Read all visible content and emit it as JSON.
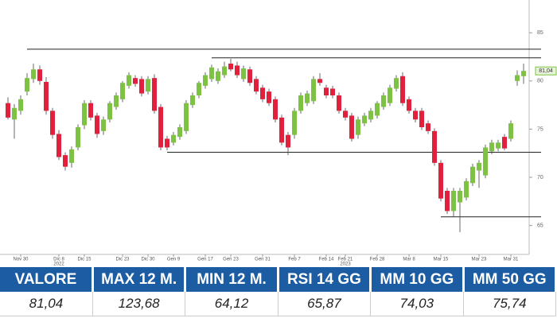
{
  "chart_data": {
    "type": "candlestick",
    "categories": [
      null,
      null,
      "Nov 30",
      null,
      null,
      null,
      null,
      null,
      "Dic 8",
      null,
      null,
      null,
      "Dic 15",
      null,
      null,
      null,
      null,
      null,
      "Dic 23",
      null,
      null,
      null,
      "Dic 30",
      null,
      null,
      null,
      "Gen 9",
      null,
      null,
      null,
      null,
      "Gen 17",
      null,
      null,
      null,
      "Gen 23",
      null,
      null,
      null,
      null,
      "Gen 31",
      null,
      null,
      null,
      null,
      "Feb 7",
      null,
      null,
      null,
      null,
      "Feb 14",
      null,
      null,
      "Feb 21",
      null,
      null,
      null,
      null,
      "Feb 28",
      null,
      null,
      null,
      null,
      "Mar 8",
      null,
      null,
      null,
      null,
      "Mar 15",
      null,
      null,
      null,
      null,
      null,
      "Mar 23",
      null,
      null,
      null,
      null,
      "Mar 31",
      null,
      null
    ],
    "x_sublabels": [
      null,
      null,
      null,
      null,
      null,
      null,
      null,
      null,
      "2022",
      null,
      null,
      null,
      null,
      null,
      null,
      null,
      null,
      null,
      null,
      null,
      null,
      null,
      null,
      null,
      null,
      null,
      null,
      null,
      null,
      null,
      null,
      null,
      null,
      null,
      null,
      null,
      null,
      null,
      null,
      null,
      null,
      null,
      null,
      null,
      null,
      null,
      null,
      null,
      null,
      null,
      null,
      null,
      null,
      "2023",
      null,
      null,
      null,
      null,
      null,
      null,
      null,
      null,
      null,
      null,
      null,
      null,
      null,
      null,
      null,
      null,
      null,
      null,
      null,
      null,
      null,
      null,
      null,
      null,
      null,
      null,
      null,
      null
    ],
    "ohlc": [
      [
        77.7,
        78.3,
        76.0,
        76.2
      ],
      [
        76.0,
        77.6,
        74.0,
        77.2
      ],
      [
        76.9,
        78.5,
        76.5,
        78.1
      ],
      [
        78.9,
        80.8,
        78.5,
        80.3
      ],
      [
        80.2,
        81.8,
        79.8,
        81.2
      ],
      [
        81.2,
        81.6,
        79.6,
        80.0
      ],
      [
        79.9,
        80.4,
        76.5,
        76.9
      ],
      [
        76.9,
        77.2,
        74.0,
        74.4
      ],
      [
        74.5,
        74.9,
        71.8,
        72.1
      ],
      [
        72.3,
        72.6,
        70.7,
        71.1
      ],
      [
        71.5,
        73.2,
        71.0,
        72.9
      ],
      [
        73.1,
        75.5,
        72.8,
        75.2
      ],
      [
        75.4,
        78.0,
        75.0,
        77.7
      ],
      [
        77.7,
        78.0,
        75.9,
        76.2
      ],
      [
        76.4,
        76.7,
        74.1,
        74.5
      ],
      [
        74.8,
        76.3,
        74.4,
        76.0
      ],
      [
        76.0,
        77.9,
        75.7,
        77.7
      ],
      [
        77.3,
        78.8,
        77.0,
        78.5
      ],
      [
        78.1,
        80.0,
        77.8,
        79.8
      ],
      [
        79.5,
        80.9,
        79.2,
        80.6
      ],
      [
        80.3,
        80.6,
        79.4,
        79.7
      ],
      [
        80.2,
        80.5,
        78.4,
        78.7
      ],
      [
        78.9,
        80.5,
        78.6,
        80.2
      ],
      [
        80.3,
        80.7,
        76.6,
        76.9
      ],
      [
        77.3,
        77.6,
        72.8,
        73.1
      ],
      [
        74.0,
        74.3,
        72.8,
        73.1
      ],
      [
        73.6,
        74.7,
        73.3,
        74.4
      ],
      [
        74.2,
        75.5,
        73.9,
        75.2
      ],
      [
        74.8,
        78.0,
        74.5,
        77.7
      ],
      [
        77.5,
        78.8,
        77.2,
        78.5
      ],
      [
        78.5,
        80.0,
        78.2,
        79.8
      ],
      [
        79.5,
        80.9,
        79.2,
        80.6
      ],
      [
        80.2,
        81.7,
        79.9,
        81.4
      ],
      [
        80.0,
        81.3,
        79.7,
        81.0
      ],
      [
        80.6,
        82.0,
        80.3,
        81.5
      ],
      [
        81.8,
        82.3,
        81.0,
        81.2
      ],
      [
        81.6,
        82.0,
        80.3,
        80.6
      ],
      [
        80.2,
        81.6,
        79.9,
        81.3
      ],
      [
        81.2,
        81.5,
        79.5,
        79.8
      ],
      [
        80.2,
        80.5,
        78.6,
        78.9
      ],
      [
        79.3,
        79.6,
        77.8,
        78.1
      ],
      [
        78.9,
        79.2,
        77.4,
        77.7
      ],
      [
        78.1,
        78.4,
        75.7,
        76.0
      ],
      [
        76.2,
        76.5,
        73.3,
        73.6
      ],
      [
        74.4,
        74.7,
        72.3,
        73.1
      ],
      [
        74.4,
        77.2,
        74.0,
        76.9
      ],
      [
        76.9,
        78.8,
        76.6,
        78.5
      ],
      [
        77.7,
        79.0,
        77.4,
        78.7
      ],
      [
        77.9,
        80.5,
        77.6,
        80.2
      ],
      [
        80.2,
        80.8,
        79.5,
        79.8
      ],
      [
        79.3,
        79.6,
        78.2,
        78.5
      ],
      [
        79.2,
        79.5,
        78.2,
        78.5
      ],
      [
        78.5,
        78.8,
        76.6,
        76.9
      ],
      [
        76.9,
        77.2,
        75.9,
        76.2
      ],
      [
        76.4,
        76.7,
        73.7,
        74.0
      ],
      [
        74.4,
        76.3,
        74.0,
        76.0
      ],
      [
        75.6,
        76.7,
        75.3,
        76.4
      ],
      [
        76.0,
        77.2,
        75.7,
        76.9
      ],
      [
        76.4,
        77.9,
        76.1,
        77.7
      ],
      [
        77.3,
        78.8,
        77.0,
        78.5
      ],
      [
        77.7,
        79.6,
        77.4,
        79.3
      ],
      [
        79.2,
        80.6,
        78.9,
        80.3
      ],
      [
        80.5,
        80.9,
        77.4,
        77.7
      ],
      [
        78.1,
        78.4,
        76.6,
        76.9
      ],
      [
        76.9,
        77.2,
        75.7,
        76.0
      ],
      [
        76.9,
        77.2,
        74.9,
        75.2
      ],
      [
        75.6,
        75.9,
        74.5,
        74.8
      ],
      [
        74.8,
        75.1,
        71.2,
        71.5
      ],
      [
        71.5,
        71.8,
        67.5,
        67.8
      ],
      [
        68.6,
        68.9,
        66.2,
        66.5
      ],
      [
        66.5,
        68.9,
        65.9,
        68.6
      ],
      [
        67.4,
        68.9,
        64.3,
        68.6
      ],
      [
        67.9,
        69.9,
        67.6,
        69.6
      ],
      [
        69.4,
        71.4,
        69.1,
        71.1
      ],
      [
        70.7,
        71.8,
        68.9,
        71.5
      ],
      [
        70.2,
        73.4,
        69.9,
        73.1
      ],
      [
        72.7,
        73.9,
        72.4,
        73.6
      ],
      [
        73.0,
        73.9,
        72.7,
        73.6
      ],
      [
        74.2,
        74.5,
        72.8,
        73.0
      ],
      [
        74.0,
        75.9,
        73.7,
        75.6
      ],
      [
        80.0,
        81.1,
        79.5,
        80.6
      ],
      [
        80.5,
        81.8,
        79.7,
        81.04
      ]
    ],
    "up_color": "#7dc242",
    "down_color": "#e0203c",
    "levels": [
      83.3,
      82.4,
      72.6,
      65.9
    ],
    "last_price": {
      "value": 81.04,
      "label": "81,04"
    },
    "ylim": [
      62,
      88.4
    ],
    "yticks": [
      65,
      70,
      75,
      80,
      85
    ]
  },
  "table": {
    "headers": [
      "VALORE",
      "MAX 12 M.",
      "MIN 12 M.",
      "RSI 14 GG",
      "MM 10 GG",
      "MM 50 GG"
    ],
    "rows": [
      [
        "81,04",
        "123,68",
        "64,12",
        "65,87",
        "74,03",
        "75,74"
      ]
    ]
  }
}
